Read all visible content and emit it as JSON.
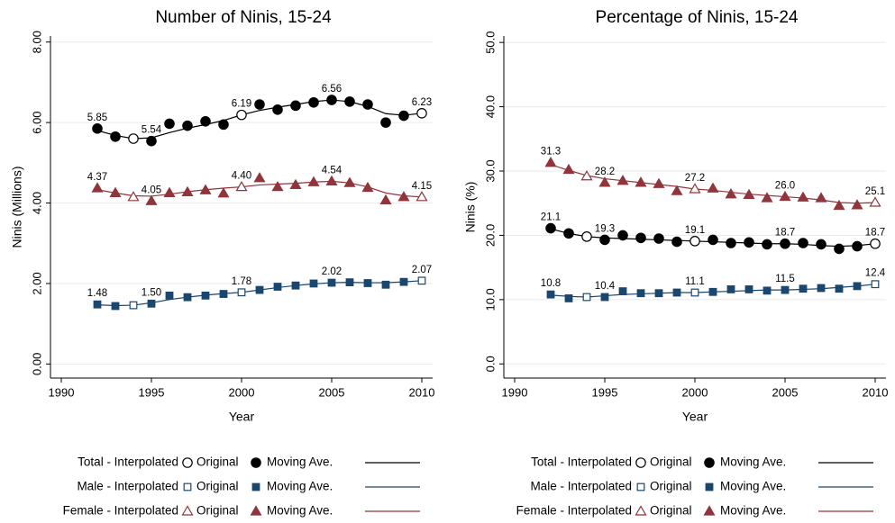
{
  "chart_data": [
    {
      "type": "line",
      "title": "Number of Ninis, 15-24",
      "xlabel": "Year",
      "ylabel": "Ninis (Millions)",
      "xlim": [
        1989.4,
        2010.6
      ],
      "ylim": [
        -0.35,
        8.15
      ],
      "xticks": [
        1990,
        1995,
        2000,
        2005,
        2010
      ],
      "yticks": [
        {
          "value": 0,
          "label": "0.00"
        },
        {
          "value": 2,
          "label": "2.00"
        },
        {
          "value": 4,
          "label": "4.00"
        },
        {
          "value": 6,
          "label": "6.00"
        },
        {
          "value": 8,
          "label": "8.00"
        }
      ],
      "grid": true,
      "x": [
        1992,
        1993,
        1994,
        1995,
        1996,
        1997,
        1998,
        1999,
        2000,
        2001,
        2002,
        2003,
        2004,
        2005,
        2006,
        2007,
        2008,
        2009,
        2010
      ],
      "series": [
        {
          "name": "Total - Interpolated",
          "color": "#000000",
          "marker": "circle",
          "hollow": true,
          "values": [
            null,
            null,
            5.6,
            null,
            null,
            null,
            null,
            null,
            6.19,
            null,
            null,
            null,
            null,
            null,
            null,
            null,
            null,
            null,
            6.23
          ],
          "value_labels": [
            null,
            null,
            null,
            null,
            null,
            null,
            null,
            null,
            "6.19",
            null,
            null,
            null,
            null,
            null,
            null,
            null,
            null,
            null,
            "6.23"
          ]
        },
        {
          "name": "Original",
          "color": "#000000",
          "marker": "circle",
          "hollow": false,
          "values": [
            5.85,
            5.65,
            null,
            5.54,
            5.97,
            5.92,
            6.03,
            5.95,
            null,
            6.45,
            6.32,
            6.42,
            6.5,
            6.56,
            6.52,
            6.45,
            6.0,
            6.17,
            null
          ],
          "value_labels": [
            "5.85",
            null,
            null,
            "5.54",
            null,
            null,
            null,
            null,
            null,
            null,
            null,
            null,
            null,
            "6.56",
            null,
            null,
            null,
            null,
            null
          ]
        },
        {
          "name": "Moving Ave.",
          "color": "#000000",
          "line": true,
          "values": [
            5.8,
            5.68,
            5.6,
            5.62,
            5.75,
            5.86,
            5.95,
            6.05,
            6.19,
            6.3,
            6.38,
            6.45,
            6.52,
            6.56,
            6.52,
            6.4,
            6.22,
            6.18,
            6.23
          ]
        },
        {
          "name": "Male - Interpolated",
          "color": "#1a476f",
          "marker": "square",
          "hollow": true,
          "values": [
            null,
            null,
            1.46,
            null,
            null,
            null,
            null,
            null,
            1.78,
            null,
            null,
            null,
            null,
            null,
            null,
            null,
            null,
            null,
            2.07
          ],
          "value_labels": [
            null,
            null,
            null,
            null,
            null,
            null,
            null,
            null,
            "1.78",
            null,
            null,
            null,
            null,
            null,
            null,
            null,
            null,
            null,
            "2.07"
          ]
        },
        {
          "name": "Original",
          "color": "#1a476f",
          "marker": "square",
          "hollow": false,
          "values": [
            1.48,
            1.44,
            null,
            1.5,
            1.7,
            1.66,
            1.7,
            1.74,
            null,
            1.84,
            1.92,
            1.95,
            2.0,
            2.02,
            2.03,
            2.01,
            1.97,
            2.04,
            null
          ],
          "value_labels": [
            "1.48",
            null,
            null,
            "1.50",
            null,
            null,
            null,
            null,
            null,
            null,
            null,
            null,
            null,
            "2.02",
            null,
            null,
            null,
            null,
            null
          ]
        },
        {
          "name": "Moving Ave.",
          "color": "#1a476f",
          "line": true,
          "values": [
            1.47,
            1.45,
            1.46,
            1.52,
            1.6,
            1.66,
            1.71,
            1.75,
            1.78,
            1.84,
            1.9,
            1.95,
            1.99,
            2.02,
            2.03,
            2.02,
            2.02,
            2.04,
            2.07
          ]
        },
        {
          "name": "Female - Interpolated",
          "color": "#90353b",
          "marker": "triangle",
          "hollow": true,
          "values": [
            null,
            null,
            4.15,
            null,
            null,
            null,
            null,
            null,
            4.4,
            null,
            null,
            null,
            null,
            null,
            null,
            null,
            null,
            null,
            4.15
          ],
          "value_labels": [
            null,
            null,
            null,
            null,
            null,
            null,
            null,
            null,
            "4.40",
            null,
            null,
            null,
            null,
            null,
            null,
            null,
            null,
            null,
            "4.15"
          ]
        },
        {
          "name": "Original",
          "color": "#90353b",
          "marker": "triangle",
          "hollow": false,
          "values": [
            4.37,
            4.25,
            null,
            4.05,
            4.25,
            4.27,
            4.32,
            4.24,
            null,
            4.62,
            4.4,
            4.45,
            4.52,
            4.54,
            4.5,
            4.38,
            4.07,
            4.15,
            null
          ],
          "value_labels": [
            "4.37",
            null,
            null,
            "4.05",
            null,
            null,
            null,
            null,
            null,
            null,
            null,
            null,
            null,
            "4.54",
            null,
            null,
            null,
            null,
            null
          ]
        },
        {
          "name": "Moving Ave.",
          "color": "#90353b",
          "line": true,
          "values": [
            4.33,
            4.25,
            4.18,
            4.17,
            4.22,
            4.28,
            4.33,
            4.37,
            4.4,
            4.45,
            4.47,
            4.49,
            4.52,
            4.54,
            4.5,
            4.4,
            4.25,
            4.18,
            4.15
          ]
        }
      ]
    },
    {
      "type": "line",
      "title": "Percentage of Ninis, 15-24",
      "xlabel": "Year",
      "ylabel": "Ninis (%)",
      "xlim": [
        1989.4,
        2010.6
      ],
      "ylim": [
        -2.2,
        51
      ],
      "xticks": [
        1990,
        1995,
        2000,
        2005,
        2010
      ],
      "yticks": [
        {
          "value": 0,
          "label": "0.0"
        },
        {
          "value": 10,
          "label": "10.0"
        },
        {
          "value": 20,
          "label": "20.0"
        },
        {
          "value": 30,
          "label": "30.0"
        },
        {
          "value": 40,
          "label": "40.0"
        },
        {
          "value": 50,
          "label": "50.0"
        }
      ],
      "grid": true,
      "x": [
        1992,
        1993,
        1994,
        1995,
        1996,
        1997,
        1998,
        1999,
        2000,
        2001,
        2002,
        2003,
        2004,
        2005,
        2006,
        2007,
        2008,
        2009,
        2010
      ],
      "series": [
        {
          "name": "Total - Interpolated",
          "color": "#000000",
          "marker": "circle",
          "hollow": true,
          "values": [
            null,
            null,
            19.8,
            null,
            null,
            null,
            null,
            null,
            19.1,
            null,
            null,
            null,
            null,
            null,
            null,
            null,
            null,
            null,
            18.7
          ],
          "value_labels": [
            null,
            null,
            null,
            null,
            null,
            null,
            null,
            null,
            "19.1",
            null,
            null,
            null,
            null,
            null,
            null,
            null,
            null,
            null,
            "18.7"
          ]
        },
        {
          "name": "Original",
          "color": "#000000",
          "marker": "circle",
          "hollow": false,
          "values": [
            21.1,
            20.3,
            null,
            19.3,
            20.0,
            19.6,
            19.5,
            19.0,
            null,
            19.3,
            18.8,
            18.9,
            18.6,
            18.7,
            18.8,
            18.6,
            17.9,
            18.3,
            null
          ],
          "value_labels": [
            "21.1",
            null,
            null,
            "19.3",
            null,
            null,
            null,
            null,
            null,
            null,
            null,
            null,
            null,
            "18.7",
            null,
            null,
            null,
            null,
            null
          ]
        },
        {
          "name": "Moving Ave.",
          "color": "#000000",
          "line": true,
          "values": [
            21.0,
            20.3,
            19.8,
            19.6,
            19.5,
            19.4,
            19.3,
            19.2,
            19.1,
            19.0,
            18.9,
            18.8,
            18.7,
            18.7,
            18.6,
            18.4,
            18.3,
            18.4,
            18.7
          ]
        },
        {
          "name": "Male - Interpolated",
          "color": "#1a476f",
          "marker": "square",
          "hollow": true,
          "values": [
            null,
            null,
            10.4,
            null,
            null,
            null,
            null,
            null,
            11.1,
            null,
            null,
            null,
            null,
            null,
            null,
            null,
            null,
            null,
            12.4
          ],
          "value_labels": [
            null,
            null,
            null,
            null,
            null,
            null,
            null,
            null,
            "11.1",
            null,
            null,
            null,
            null,
            null,
            null,
            null,
            null,
            null,
            "12.4"
          ]
        },
        {
          "name": "Original",
          "color": "#1a476f",
          "marker": "square",
          "hollow": false,
          "values": [
            10.8,
            10.2,
            null,
            10.4,
            11.3,
            11.0,
            11.0,
            11.1,
            null,
            11.2,
            11.6,
            11.6,
            11.4,
            11.5,
            11.7,
            11.8,
            11.7,
            12.1,
            null
          ],
          "value_labels": [
            "10.8",
            null,
            null,
            "10.4",
            null,
            null,
            null,
            null,
            null,
            null,
            null,
            null,
            null,
            "11.5",
            null,
            null,
            null,
            null,
            null
          ]
        },
        {
          "name": "Moving Ave.",
          "color": "#1a476f",
          "line": true,
          "values": [
            10.7,
            10.5,
            10.4,
            10.6,
            10.8,
            10.9,
            11.0,
            11.1,
            11.1,
            11.2,
            11.3,
            11.4,
            11.5,
            11.5,
            11.6,
            11.7,
            11.9,
            12.1,
            12.4
          ]
        },
        {
          "name": "Female - Interpolated",
          "color": "#90353b",
          "marker": "triangle",
          "hollow": true,
          "values": [
            null,
            null,
            29.2,
            null,
            null,
            null,
            null,
            null,
            27.2,
            null,
            null,
            null,
            null,
            null,
            null,
            null,
            null,
            null,
            25.1
          ],
          "value_labels": [
            null,
            null,
            null,
            null,
            null,
            null,
            null,
            null,
            "27.2",
            null,
            null,
            null,
            null,
            null,
            null,
            null,
            null,
            null,
            "25.1"
          ]
        },
        {
          "name": "Original",
          "color": "#90353b",
          "marker": "triangle",
          "hollow": false,
          "values": [
            31.3,
            30.2,
            null,
            28.2,
            28.5,
            28.2,
            28.0,
            26.9,
            null,
            27.3,
            26.4,
            26.3,
            25.8,
            26.0,
            25.9,
            25.8,
            24.6,
            24.7,
            null
          ],
          "value_labels": [
            "31.3",
            null,
            null,
            "28.2",
            null,
            null,
            null,
            null,
            null,
            null,
            null,
            null,
            null,
            "26.0",
            null,
            null,
            null,
            null,
            null
          ]
        },
        {
          "name": "Moving Ave.",
          "color": "#90353b",
          "line": true,
          "values": [
            31.0,
            30.1,
            29.3,
            28.8,
            28.5,
            28.2,
            27.9,
            27.6,
            27.2,
            27.0,
            26.7,
            26.4,
            26.2,
            26.0,
            25.8,
            25.5,
            25.1,
            25.0,
            25.1
          ]
        }
      ]
    }
  ]
}
